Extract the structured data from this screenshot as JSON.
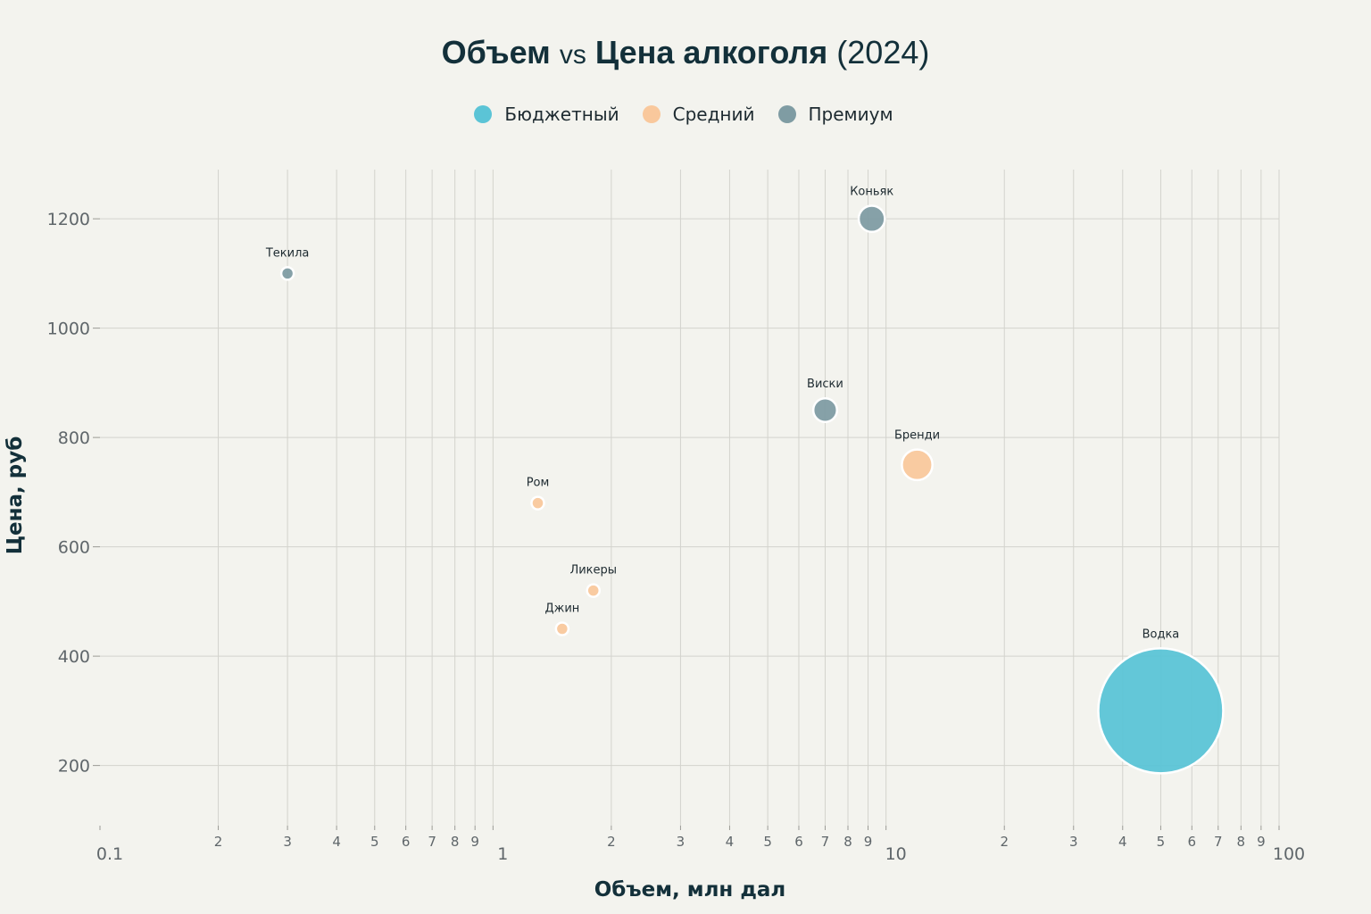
{
  "title": {
    "part1": "Объем",
    "vs": "vs",
    "part2": "Цена алкоголя",
    "year": "(2024)"
  },
  "legend": [
    {
      "label": "Бюджетный",
      "color": "#5bc4d6"
    },
    {
      "label": "Средний",
      "color": "#f9c89c"
    },
    {
      "label": "Премиум",
      "color": "#7f9ca3"
    }
  ],
  "chart_data": {
    "type": "scatter",
    "subtype": "bubble",
    "title": "Объем vs Цена алкоголя (2024)",
    "xlabel": "Объем, млн дал",
    "ylabel": "Цена, руб",
    "x_scale": "log",
    "xlim": [
      0.1,
      100
    ],
    "ylim": [
      90,
      1290
    ],
    "x_major_ticks": [
      {
        "value": 0.1,
        "label": "0.1"
      },
      {
        "value": 1,
        "label": "1"
      },
      {
        "value": 10,
        "label": "10"
      },
      {
        "value": 100,
        "label": "100"
      }
    ],
    "x_minor_tick_labels": [
      "2",
      "3",
      "4",
      "5",
      "6",
      "7",
      "8",
      "9"
    ],
    "y_ticks": [
      200,
      400,
      600,
      800,
      1000,
      1200
    ],
    "grid": true,
    "legend_position": "top-center",
    "series": [
      {
        "name": "Бюджетный",
        "color": "#5bc4d6",
        "points": [
          {
            "label": "Водка",
            "x": 50,
            "y": 300,
            "size": 50
          }
        ]
      },
      {
        "name": "Средний",
        "color": "#f9c89c",
        "points": [
          {
            "label": "Бренди",
            "x": 12,
            "y": 750,
            "size": 3
          },
          {
            "label": "Ром",
            "x": 1.3,
            "y": 680,
            "size": 0.45
          },
          {
            "label": "Ликеры",
            "x": 1.8,
            "y": 520,
            "size": 0.5
          },
          {
            "label": "Джин",
            "x": 1.5,
            "y": 450,
            "size": 0.45
          }
        ]
      },
      {
        "name": "Премиум",
        "color": "#7f9ca3",
        "points": [
          {
            "label": "Коньяк",
            "x": 9.2,
            "y": 1200,
            "size": 2.2
          },
          {
            "label": "Виски",
            "x": 7,
            "y": 850,
            "size": 1.8
          },
          {
            "label": "Текила",
            "x": 0.3,
            "y": 1100,
            "size": 0.3
          }
        ]
      }
    ]
  }
}
